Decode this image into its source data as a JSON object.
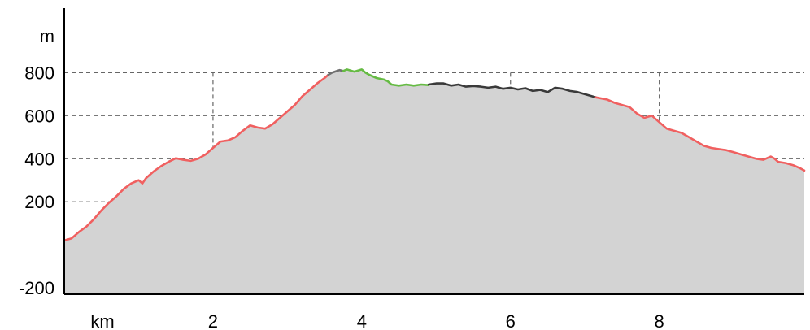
{
  "chart_data": {
    "type": "area",
    "title": "",
    "xlabel": "km",
    "ylabel": "m",
    "xlim": [
      0,
      9.95
    ],
    "ylim": [
      -230,
      1100
    ],
    "x_ticks": [
      2,
      4,
      6,
      8
    ],
    "y_ticks": [
      -200,
      200,
      400,
      600,
      800
    ],
    "y_gridlines": [
      -200,
      0,
      200,
      400,
      600,
      800
    ],
    "x_gridlines": [
      2,
      4,
      6,
      8
    ],
    "grid": true,
    "fill_color": "#d3d3d3",
    "segments": [
      {
        "color": "#f06060",
        "points": [
          [
            0.0,
            20
          ],
          [
            0.1,
            30
          ],
          [
            0.2,
            60
          ],
          [
            0.3,
            85
          ],
          [
            0.4,
            120
          ],
          [
            0.5,
            160
          ],
          [
            0.6,
            195
          ],
          [
            0.7,
            225
          ],
          [
            0.8,
            260
          ],
          [
            0.9,
            285
          ],
          [
            1.0,
            300
          ],
          [
            1.05,
            285
          ],
          [
            1.1,
            310
          ],
          [
            1.2,
            340
          ],
          [
            1.3,
            365
          ],
          [
            1.4,
            385
          ],
          [
            1.5,
            402
          ],
          [
            1.6,
            395
          ],
          [
            1.7,
            390
          ],
          [
            1.8,
            400
          ],
          [
            1.9,
            420
          ],
          [
            2.0,
            450
          ],
          [
            2.1,
            480
          ],
          [
            2.2,
            485
          ],
          [
            2.3,
            500
          ],
          [
            2.4,
            530
          ],
          [
            2.5,
            555
          ],
          [
            2.6,
            545
          ],
          [
            2.7,
            540
          ],
          [
            2.8,
            560
          ],
          [
            2.9,
            590
          ],
          [
            3.0,
            620
          ],
          [
            3.1,
            650
          ],
          [
            3.2,
            690
          ],
          [
            3.3,
            720
          ],
          [
            3.4,
            750
          ],
          [
            3.5,
            775
          ],
          [
            3.55,
            790
          ]
        ]
      },
      {
        "color": "#707070",
        "points": [
          [
            3.55,
            790
          ],
          [
            3.6,
            800
          ],
          [
            3.7,
            812
          ],
          [
            3.75,
            808
          ]
        ]
      },
      {
        "color": "#66bb44",
        "points": [
          [
            3.75,
            808
          ],
          [
            3.8,
            815
          ],
          [
            3.9,
            805
          ],
          [
            4.0,
            815
          ],
          [
            4.05,
            800
          ],
          [
            4.1,
            790
          ],
          [
            4.2,
            775
          ],
          [
            4.3,
            768
          ],
          [
            4.35,
            760
          ],
          [
            4.4,
            745
          ],
          [
            4.5,
            740
          ],
          [
            4.6,
            745
          ],
          [
            4.7,
            740
          ],
          [
            4.8,
            745
          ],
          [
            4.9,
            742
          ]
        ]
      },
      {
        "color": "#3a3a3a",
        "points": [
          [
            4.9,
            745
          ],
          [
            5.0,
            750
          ],
          [
            5.1,
            750
          ],
          [
            5.2,
            740
          ],
          [
            5.3,
            745
          ],
          [
            5.4,
            735
          ],
          [
            5.5,
            738
          ],
          [
            5.6,
            735
          ],
          [
            5.7,
            730
          ],
          [
            5.8,
            735
          ],
          [
            5.9,
            725
          ],
          [
            6.0,
            730
          ],
          [
            6.1,
            722
          ],
          [
            6.2,
            728
          ],
          [
            6.3,
            715
          ],
          [
            6.4,
            720
          ],
          [
            6.5,
            710
          ],
          [
            6.6,
            730
          ],
          [
            6.7,
            725
          ],
          [
            6.8,
            715
          ],
          [
            6.9,
            710
          ],
          [
            7.0,
            700
          ],
          [
            7.1,
            690
          ],
          [
            7.15,
            685
          ]
        ]
      },
      {
        "color": "#f06060",
        "points": [
          [
            7.15,
            685
          ],
          [
            7.3,
            675
          ],
          [
            7.4,
            660
          ],
          [
            7.5,
            650
          ],
          [
            7.6,
            640
          ],
          [
            7.7,
            610
          ],
          [
            7.8,
            590
          ],
          [
            7.9,
            600
          ],
          [
            8.0,
            570
          ],
          [
            8.1,
            540
          ],
          [
            8.2,
            530
          ],
          [
            8.3,
            520
          ],
          [
            8.4,
            500
          ],
          [
            8.5,
            480
          ],
          [
            8.6,
            460
          ],
          [
            8.7,
            450
          ],
          [
            8.8,
            445
          ],
          [
            8.9,
            440
          ],
          [
            9.0,
            430
          ],
          [
            9.1,
            420
          ],
          [
            9.2,
            410
          ],
          [
            9.3,
            400
          ],
          [
            9.4,
            395
          ],
          [
            9.5,
            410
          ],
          [
            9.55,
            400
          ],
          [
            9.6,
            385
          ],
          [
            9.7,
            380
          ],
          [
            9.8,
            370
          ],
          [
            9.9,
            355
          ],
          [
            9.95,
            345
          ]
        ]
      }
    ]
  }
}
